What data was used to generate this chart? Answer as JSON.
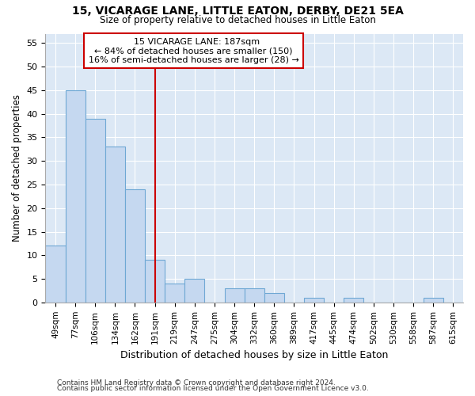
{
  "title": "15, VICARAGE LANE, LITTLE EATON, DERBY, DE21 5EA",
  "subtitle": "Size of property relative to detached houses in Little Eaton",
  "xlabel": "Distribution of detached houses by size in Little Eaton",
  "ylabel": "Number of detached properties",
  "categories": [
    "49sqm",
    "77sqm",
    "106sqm",
    "134sqm",
    "162sqm",
    "191sqm",
    "219sqm",
    "247sqm",
    "275sqm",
    "304sqm",
    "332sqm",
    "360sqm",
    "389sqm",
    "417sqm",
    "445sqm",
    "474sqm",
    "502sqm",
    "530sqm",
    "558sqm",
    "587sqm",
    "615sqm"
  ],
  "values": [
    12,
    45,
    39,
    33,
    24,
    9,
    4,
    5,
    0,
    3,
    3,
    2,
    0,
    1,
    0,
    1,
    0,
    0,
    0,
    1,
    0
  ],
  "bar_color": "#c5d8f0",
  "bar_edgecolor": "#6fa8d4",
  "vline_x_index": 5,
  "vline_color": "#cc0000",
  "property_label": "15 VICARAGE LANE: 187sqm",
  "annotation_line1": "← 84% of detached houses are smaller (150)",
  "annotation_line2": "16% of semi-detached houses are larger (28) →",
  "annotation_box_edgecolor": "#cc0000",
  "annotation_box_facecolor": "#ffffff",
  "ylim": [
    0,
    57
  ],
  "yticks": [
    0,
    5,
    10,
    15,
    20,
    25,
    30,
    35,
    40,
    45,
    50,
    55
  ],
  "footnote1": "Contains HM Land Registry data © Crown copyright and database right 2024.",
  "footnote2": "Contains public sector information licensed under the Open Government Licence v3.0.",
  "plot_bg_color": "#dce8f5",
  "fig_bg_color": "#ffffff",
  "grid_color": "#ffffff"
}
